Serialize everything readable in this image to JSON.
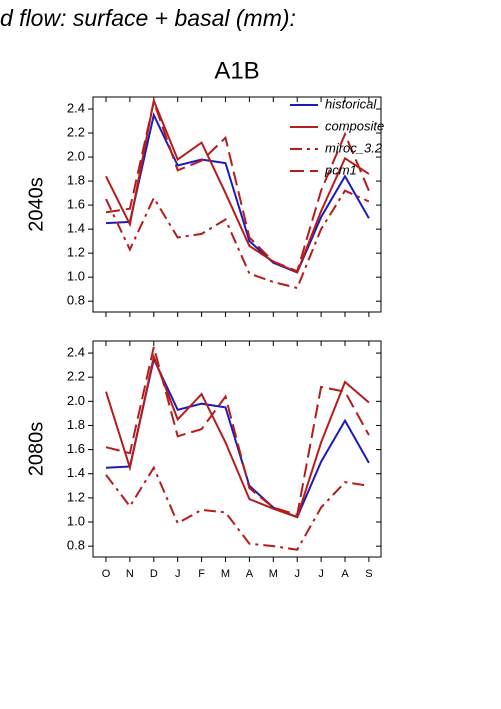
{
  "page": {
    "title": "d flow: surface + basal (mm):",
    "scenario": "A1B"
  },
  "chart_data": [
    {
      "type": "line",
      "ylabel": "2040s",
      "categories": [
        null,
        null,
        null,
        null,
        null,
        null,
        null,
        null,
        null,
        null,
        null,
        null
      ],
      "ylim": [
        0.71,
        2.5
      ],
      "yticks": [
        0.8,
        {
          "value": 1.0,
          "label": "1.0"
        },
        1.2,
        1.4,
        1.6,
        1.8,
        {
          "value": 2.0,
          "label": "2.0"
        },
        2.2,
        2.4
      ],
      "legend": "upper right",
      "series": [
        {
          "name": "historical",
          "color": "#1c1cb8",
          "dash": "solid",
          "values": [
            1.45,
            1.46,
            2.35,
            1.93,
            1.98,
            1.95,
            1.3,
            1.12,
            1.04,
            1.5,
            1.84,
            1.49
          ]
        },
        {
          "name": "composite",
          "color": "#b51c1c",
          "dash": "solid",
          "values": [
            1.84,
            1.44,
            2.47,
            1.98,
            2.12,
            1.7,
            1.26,
            1.13,
            1.04,
            1.55,
            1.99,
            1.86
          ]
        },
        {
          "name": "miroc_3.2",
          "color": "#b51c1c",
          "dash": "dashdot",
          "values": [
            1.65,
            1.23,
            1.66,
            1.33,
            1.36,
            1.48,
            1.03,
            0.96,
            0.91,
            1.4,
            1.72,
            1.63
          ]
        },
        {
          "name": "pcm1",
          "color": "#b51c1c",
          "dash": "dashed",
          "values": [
            1.54,
            1.57,
            2.46,
            1.89,
            1.97,
            2.16,
            1.33,
            1.13,
            1.05,
            1.72,
            2.19,
            1.72
          ]
        }
      ]
    },
    {
      "type": "line",
      "ylabel": "2080s",
      "categories": [
        "O",
        "N",
        "D",
        "J",
        "F",
        "M",
        "A",
        "M",
        "J",
        "J",
        "A",
        "S"
      ],
      "ylim": [
        0.71,
        2.5
      ],
      "yticks": [
        0.8,
        {
          "value": 1.0,
          "label": "1.0"
        },
        1.2,
        1.4,
        1.6,
        1.8,
        {
          "value": 2.0,
          "label": "2.0"
        },
        2.2,
        2.4
      ],
      "series": [
        {
          "color": "#1c1cb8",
          "dash": "solid",
          "values": [
            1.45,
            1.46,
            2.35,
            1.93,
            1.98,
            1.95,
            1.3,
            1.12,
            1.04,
            1.5,
            1.84,
            1.49
          ]
        },
        {
          "color": "#b51c1c",
          "dash": "solid",
          "values": [
            2.08,
            1.45,
            2.37,
            1.85,
            2.06,
            1.66,
            1.19,
            1.11,
            1.04,
            1.66,
            2.16,
            1.99
          ]
        },
        {
          "color": "#b51c1c",
          "dash": "dashdot",
          "values": [
            1.39,
            1.13,
            1.45,
            0.99,
            1.1,
            1.08,
            0.82,
            0.8,
            0.77,
            1.12,
            1.33,
            1.3
          ]
        },
        {
          "color": "#b51c1c",
          "dash": "dashed",
          "values": [
            1.62,
            1.57,
            2.45,
            1.71,
            1.77,
            2.04,
            1.28,
            1.12,
            1.06,
            2.12,
            2.08,
            1.72
          ]
        }
      ]
    }
  ]
}
